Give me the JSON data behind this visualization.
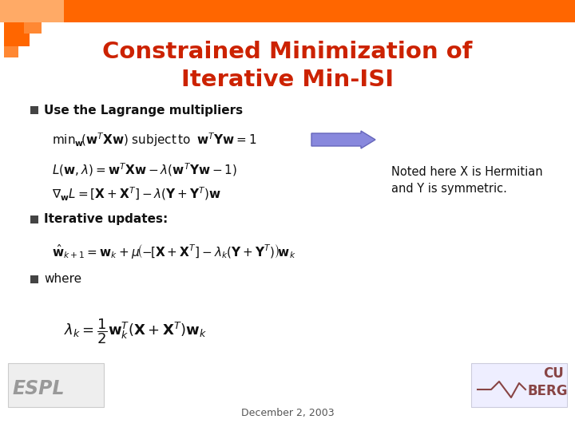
{
  "title_line1": "Constrained Minimization of",
  "title_line2": "Iterative Min-ISI",
  "title_color": "#cc2200",
  "bg_color": "#ffffff",
  "bullet1": "Use the Lagrange multipliers",
  "bullet2": "Iterative updates:",
  "bullet3": "where",
  "footer": "December 2, 2003",
  "note_line1": "Noted here X is Hermitian",
  "note_line2": "and Y is symmetric.",
  "arrow_face": "#8888dd",
  "arrow_edge": "#6666bb",
  "header_orange": "#ff6600",
  "header_light": "#ffaa66",
  "sq_dark": "#ff6600",
  "sq_med": "#ff8833",
  "bullet_sq_color": "#444444"
}
